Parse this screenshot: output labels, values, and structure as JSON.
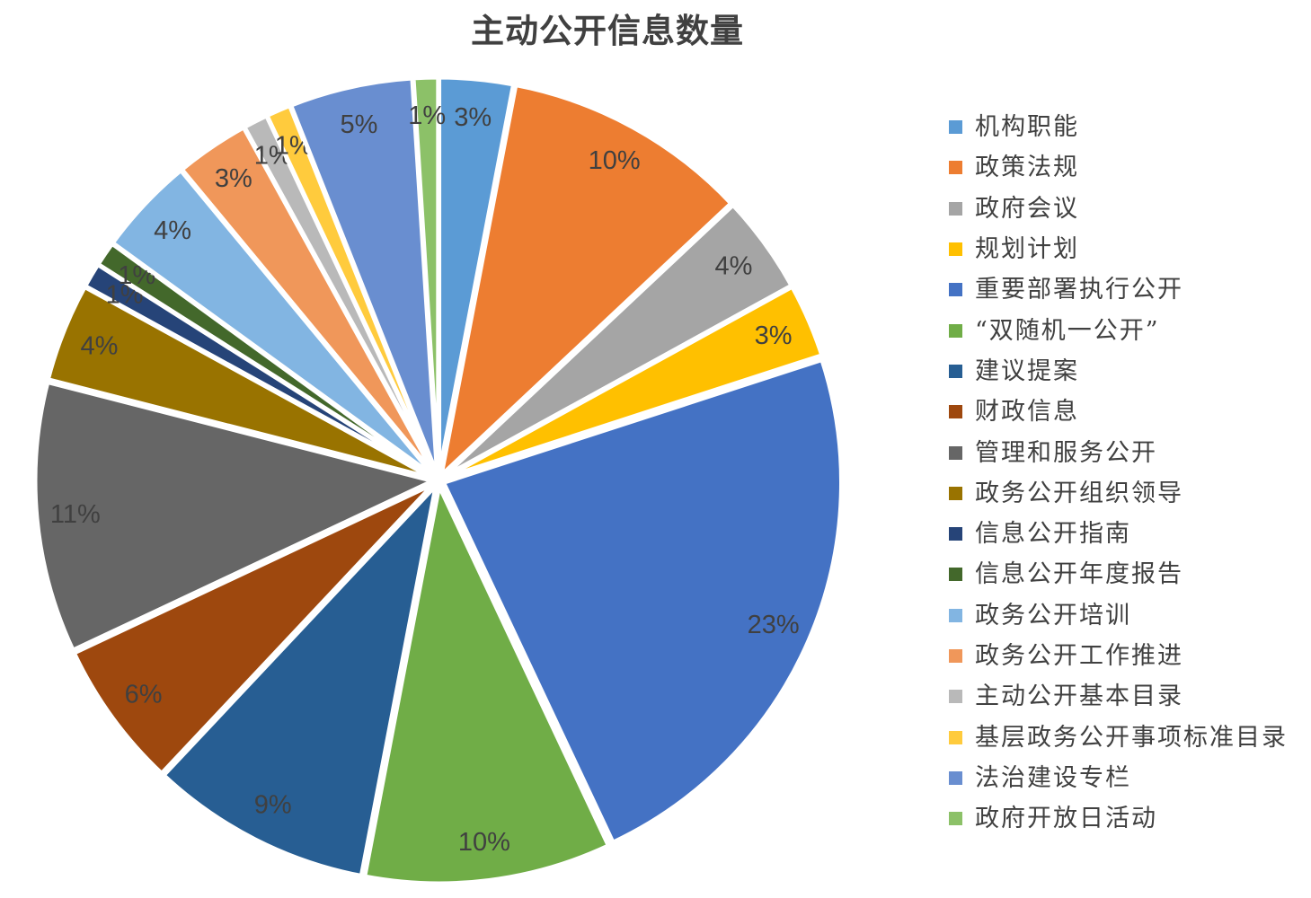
{
  "page": {
    "background": "#ffffff"
  },
  "style": {
    "title_color": "#404040",
    "label_color": "#404040",
    "legend_text_color": "#404040",
    "slice_border_color": "#ffffff"
  },
  "chart_data": {
    "type": "pie",
    "title": "主动公开信息数量",
    "legend_position": "right",
    "label_format": "percent",
    "start_angle_deg": 0,
    "direction": "clockwise",
    "slices": [
      {
        "label": "机构职能",
        "percent": 3,
        "percent_label": "3%",
        "color": "#5B9BD5"
      },
      {
        "label": "政策法规",
        "percent": 10,
        "percent_label": "10%",
        "color": "#ED7D31"
      },
      {
        "label": "政府会议",
        "percent": 4,
        "percent_label": "4%",
        "color": "#A5A5A5"
      },
      {
        "label": "规划计划",
        "percent": 3,
        "percent_label": "3%",
        "color": "#FFC000"
      },
      {
        "label": "重要部署执行公开",
        "percent": 23,
        "percent_label": "23%",
        "color": "#4472C4"
      },
      {
        "label": "“双随机一公开”",
        "percent": 10,
        "percent_label": "10%",
        "color": "#70AD47"
      },
      {
        "label": "建议提案",
        "percent": 9,
        "percent_label": "9%",
        "color": "#275E93"
      },
      {
        "label": "财政信息",
        "percent": 6,
        "percent_label": "6%",
        "color": "#9E480E"
      },
      {
        "label": "管理和服务公开",
        "percent": 11,
        "percent_label": "11%",
        "color": "#666666"
      },
      {
        "label": "政务公开组织领导",
        "percent": 4,
        "percent_label": "4%",
        "color": "#997300"
      },
      {
        "label": "信息公开指南",
        "percent": 1,
        "percent_label": "1%",
        "color": "#264478"
      },
      {
        "label": "信息公开年度报告",
        "percent": 1,
        "percent_label": "1%",
        "color": "#43682B"
      },
      {
        "label": "政务公开培训",
        "percent": 4,
        "percent_label": "4%",
        "color": "#82B5E2"
      },
      {
        "label": "政务公开工作推进",
        "percent": 3,
        "percent_label": "3%",
        "color": "#F0975A"
      },
      {
        "label": "主动公开基本目录",
        "percent": 1,
        "percent_label": "1%",
        "color": "#B9B9B9"
      },
      {
        "label": "基层政务公开事项标准目录",
        "percent": 1,
        "percent_label": "1%",
        "color": "#FFCB3D"
      },
      {
        "label": "法治建设专栏",
        "percent": 5,
        "percent_label": "5%",
        "color": "#698ED0"
      },
      {
        "label": "政府开放日活动",
        "percent": 1,
        "percent_label": "1%",
        "color": "#8CC168"
      }
    ]
  }
}
